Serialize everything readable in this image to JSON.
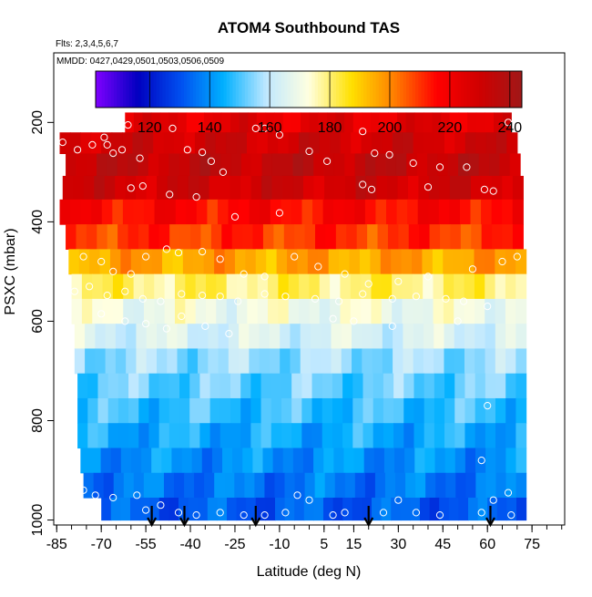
{
  "chart_data": {
    "type": "heatmap",
    "title": "ATOM4 Southbound TAS",
    "subtitle_flights": "Flts: 2,3,4,5,6,7",
    "subtitle_dates": "MMDD: 0427,0429,0501,0503,0506,0509",
    "xlabel": "Latitude (deg N)",
    "ylabel": "PSXC (mbar)",
    "xlim": [
      -86,
      86
    ],
    "ylim": [
      1010,
      60
    ],
    "x_ticks": [
      -85,
      -70,
      -55,
      -40,
      -25,
      -10,
      5,
      15,
      30,
      45,
      60,
      75
    ],
    "x_tick_labels": [
      "-85",
      "-70",
      "-55",
      "-40",
      "-25",
      "-10",
      "5",
      "15",
      "30",
      "45",
      "60",
      "75"
    ],
    "x_minor_step": 5,
    "y_ticks": [
      200,
      400,
      600,
      800,
      1000
    ],
    "y_tick_labels": [
      "200",
      "400",
      "600",
      "800",
      "1000"
    ],
    "colorbar": {
      "min": 102,
      "max": 244,
      "ticks": [
        120,
        140,
        160,
        180,
        200,
        220,
        240
      ],
      "tick_labels": [
        "120",
        "140",
        "160",
        "180",
        "200",
        "220",
        "240"
      ],
      "colors": [
        "#8000ff",
        "#0000c0",
        "#0050f0",
        "#00b0ff",
        "#c0e8ff",
        "#ffffe0",
        "#ffe000",
        "#ff8000",
        "#ff0000",
        "#d00000",
        "#a01818"
      ]
    },
    "pressure_levels": [
      {
        "p": 200,
        "tas": 224,
        "lat_min": -62,
        "lat_max": 68
      },
      {
        "p": 240,
        "tas": 230,
        "lat_min": -84,
        "lat_max": 70
      },
      {
        "p": 285,
        "tas": 234,
        "lat_min": -82,
        "lat_max": 71
      },
      {
        "p": 330,
        "tas": 230,
        "lat_min": -83,
        "lat_max": 72
      },
      {
        "p": 380,
        "tas": 216,
        "lat_min": -84,
        "lat_max": 72
      },
      {
        "p": 430,
        "tas": 210,
        "lat_min": -82,
        "lat_max": 72
      },
      {
        "p": 480,
        "tas": 196,
        "lat_min": -81,
        "lat_max": 73
      },
      {
        "p": 530,
        "tas": 180,
        "lat_min": -80,
        "lat_max": 73
      },
      {
        "p": 580,
        "tas": 170,
        "lat_min": -80,
        "lat_max": 73
      },
      {
        "p": 630,
        "tas": 164,
        "lat_min": -79,
        "lat_max": 73
      },
      {
        "p": 680,
        "tas": 156,
        "lat_min": -79,
        "lat_max": 73
      },
      {
        "p": 730,
        "tas": 152,
        "lat_min": -78,
        "lat_max": 73
      },
      {
        "p": 780,
        "tas": 148,
        "lat_min": -78,
        "lat_max": 73
      },
      {
        "p": 830,
        "tas": 144,
        "lat_min": -78,
        "lat_max": 73
      },
      {
        "p": 880,
        "tas": 140,
        "lat_min": -77,
        "lat_max": 73
      },
      {
        "p": 930,
        "tas": 136,
        "lat_min": -76,
        "lat_max": 73
      },
      {
        "p": 980,
        "tas": 132,
        "lat_min": -70,
        "lat_max": 73
      }
    ],
    "profile_arrows_lat": [
      -53,
      -42,
      -18,
      20,
      61
    ],
    "observation_points": [
      [
        -83,
        240
      ],
      [
        -78,
        255
      ],
      [
        -73,
        245
      ],
      [
        -69,
        230
      ],
      [
        -68,
        245
      ],
      [
        -66,
        262
      ],
      [
        -63,
        255
      ],
      [
        -61,
        205
      ],
      [
        -57,
        272
      ],
      [
        -46,
        212
      ],
      [
        -41,
        255
      ],
      [
        -36,
        260
      ],
      [
        -33,
        278
      ],
      [
        -29,
        300
      ],
      [
        -18,
        212
      ],
      [
        -15,
        212
      ],
      [
        -10,
        225
      ],
      [
        0,
        258
      ],
      [
        6,
        278
      ],
      [
        18,
        218
      ],
      [
        22,
        262
      ],
      [
        27,
        265
      ],
      [
        35,
        282
      ],
      [
        44,
        290
      ],
      [
        53,
        290
      ],
      [
        59,
        335
      ],
      [
        62,
        338
      ],
      [
        67,
        200
      ],
      [
        -60,
        332
      ],
      [
        -56,
        328
      ],
      [
        -47,
        345
      ],
      [
        -38,
        350
      ],
      [
        -25,
        390
      ],
      [
        -10,
        382
      ],
      [
        18,
        325
      ],
      [
        21,
        335
      ],
      [
        40,
        330
      ],
      [
        -76,
        470
      ],
      [
        -70,
        480
      ],
      [
        -66,
        500
      ],
      [
        -60,
        505
      ],
      [
        -55,
        470
      ],
      [
        -48,
        455
      ],
      [
        -44,
        462
      ],
      [
        -36,
        460
      ],
      [
        -30,
        475
      ],
      [
        -22,
        505
      ],
      [
        -15,
        510
      ],
      [
        -5,
        470
      ],
      [
        3,
        490
      ],
      [
        12,
        505
      ],
      [
        20,
        525
      ],
      [
        30,
        520
      ],
      [
        40,
        510
      ],
      [
        55,
        495
      ],
      [
        65,
        480
      ],
      [
        70,
        470
      ],
      [
        -79,
        540
      ],
      [
        -74,
        530
      ],
      [
        -68,
        548
      ],
      [
        -62,
        540
      ],
      [
        -56,
        555
      ],
      [
        -50,
        560
      ],
      [
        -43,
        545
      ],
      [
        -36,
        548
      ],
      [
        -30,
        550
      ],
      [
        -24,
        560
      ],
      [
        -15,
        545
      ],
      [
        -8,
        550
      ],
      [
        2,
        555
      ],
      [
        10,
        560
      ],
      [
        18,
        545
      ],
      [
        28,
        555
      ],
      [
        36,
        550
      ],
      [
        46,
        555
      ],
      [
        52,
        560
      ],
      [
        60,
        570
      ],
      [
        -70,
        585
      ],
      [
        -62,
        600
      ],
      [
        -55,
        605
      ],
      [
        -48,
        615
      ],
      [
        -43,
        590
      ],
      [
        -35,
        610
      ],
      [
        -27,
        625
      ],
      [
        8,
        595
      ],
      [
        15,
        600
      ],
      [
        28,
        610
      ],
      [
        50,
        600
      ],
      [
        -76,
        940
      ],
      [
        -72,
        950
      ],
      [
        -66,
        955
      ],
      [
        -58,
        950
      ],
      [
        -55,
        980
      ],
      [
        -50,
        970
      ],
      [
        -44,
        985
      ],
      [
        -38,
        990
      ],
      [
        -30,
        985
      ],
      [
        -22,
        990
      ],
      [
        -15,
        990
      ],
      [
        -8,
        985
      ],
      [
        -4,
        950
      ],
      [
        0,
        960
      ],
      [
        8,
        990
      ],
      [
        12,
        985
      ],
      [
        25,
        985
      ],
      [
        30,
        960
      ],
      [
        36,
        985
      ],
      [
        44,
        990
      ],
      [
        58,
        985
      ],
      [
        62,
        960
      ],
      [
        67,
        945
      ],
      [
        68,
        990
      ],
      [
        60,
        770
      ],
      [
        58,
        880
      ]
    ]
  }
}
